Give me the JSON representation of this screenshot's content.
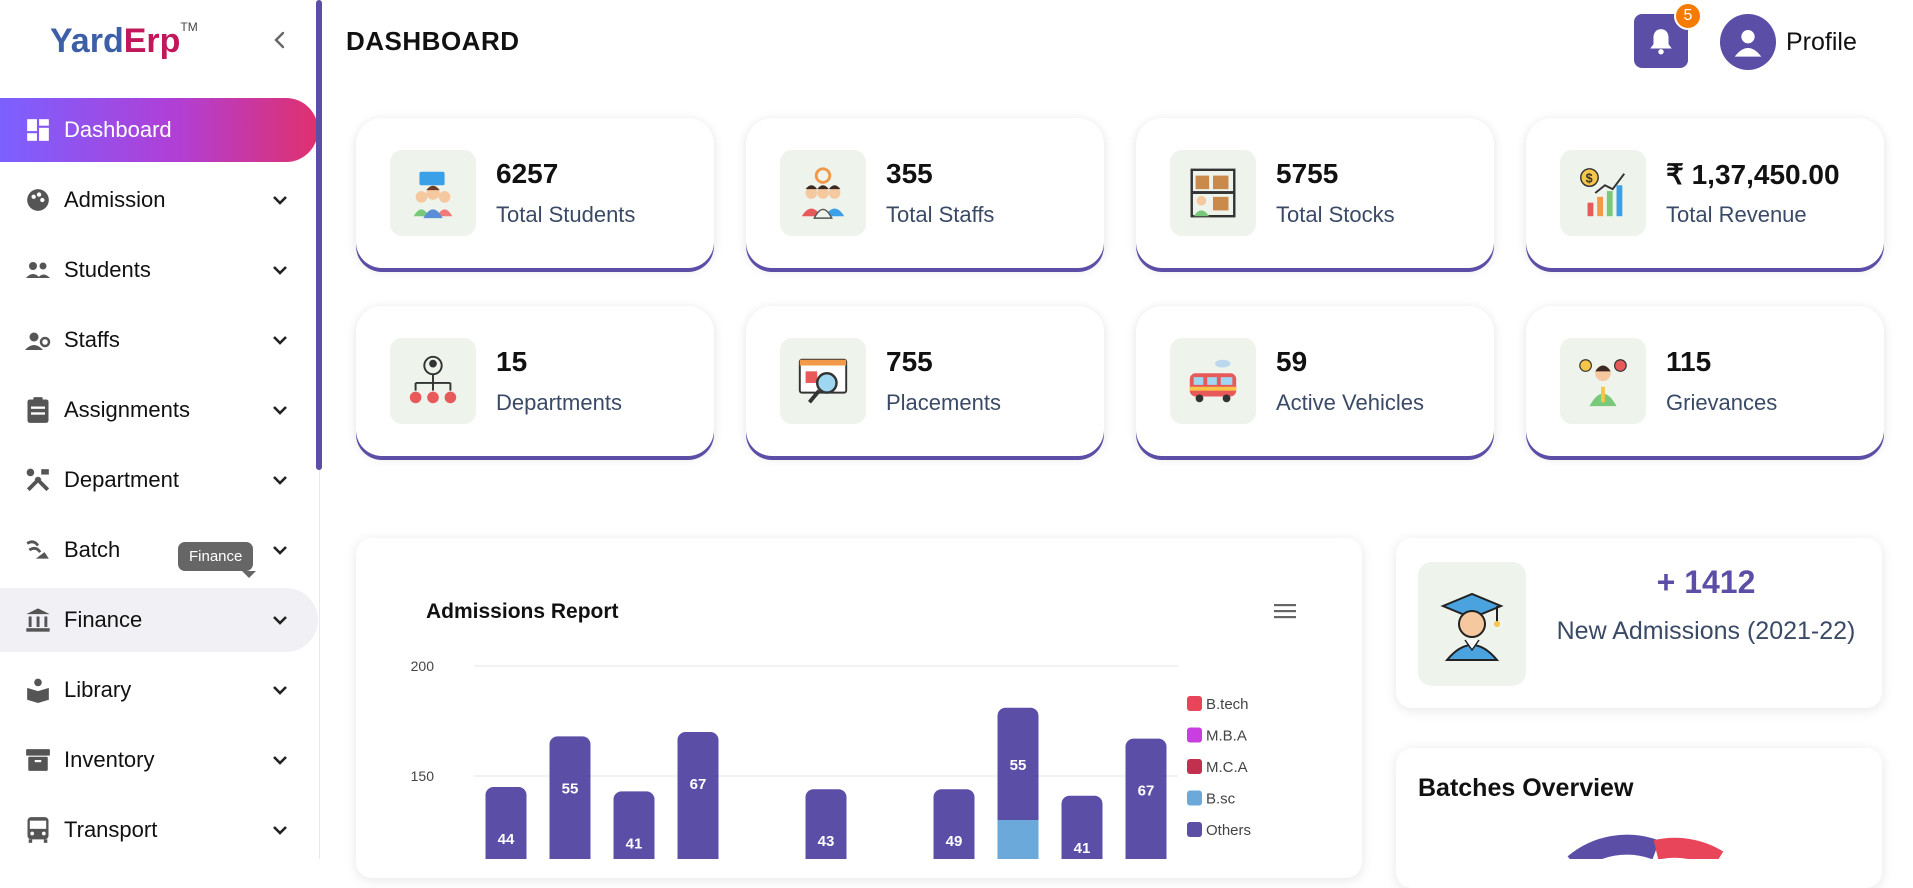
{
  "app": {
    "logo_part1": "Yard",
    "logo_part2": "Erp",
    "logo_tm": "TM"
  },
  "sidebar": {
    "items": [
      {
        "label": "Dashboard",
        "icon": "dashboard-icon"
      },
      {
        "label": "Admission",
        "icon": "palette-icon"
      },
      {
        "label": "Students",
        "icon": "people-icon"
      },
      {
        "label": "Staffs",
        "icon": "engineer-icon"
      },
      {
        "label": "Assignments",
        "icon": "clipboard-icon"
      },
      {
        "label": "Department",
        "icon": "tools-icon"
      },
      {
        "label": "Batch",
        "icon": "batch-icon"
      },
      {
        "label": "Finance",
        "icon": "bank-icon"
      },
      {
        "label": "Library",
        "icon": "book-reader-icon"
      },
      {
        "label": "Inventory",
        "icon": "archive-icon"
      },
      {
        "label": "Transport",
        "icon": "bus-icon"
      }
    ],
    "tooltip": "Finance"
  },
  "header": {
    "title": "DASHBOARD",
    "notification_count": "5",
    "profile_label": "Profile"
  },
  "stats": [
    {
      "value": "6257",
      "label": "Total Students",
      "icon": "students-icon"
    },
    {
      "value": "355",
      "label": "Total Staffs",
      "icon": "staffs-icon"
    },
    {
      "value": "5755",
      "label": "Total Stocks",
      "icon": "stocks-icon"
    },
    {
      "value": "₹ 1,37,450.00",
      "label": "Total Revenue",
      "icon": "revenue-icon"
    },
    {
      "value": "15",
      "label": "Departments",
      "icon": "departments-icon"
    },
    {
      "value": "755",
      "label": "Placements",
      "icon": "placements-icon"
    },
    {
      "value": "59",
      "label": "Active Vehicles",
      "icon": "vehicle-icon"
    },
    {
      "value": "115",
      "label": "Grievances",
      "icon": "grievances-icon"
    }
  ],
  "admissions": {
    "number": "+ 1412",
    "label": "New Admissions (2021-22)"
  },
  "batches": {
    "title": "Batches Overview"
  },
  "chart_data": {
    "type": "bar",
    "stacked": true,
    "title": "Admissions Report",
    "y_ticks": [
      "200",
      "150"
    ],
    "ylim": [
      0,
      200
    ],
    "legend_position": "right",
    "series": [
      {
        "name": "B.tech",
        "color": "#e8455a"
      },
      {
        "name": "M.B.A",
        "color": "#c93ee0"
      },
      {
        "name": "M.C.A",
        "color": "#c1304f"
      },
      {
        "name": "B.sc",
        "color": "#6aa9da"
      },
      {
        "name": "Others",
        "color": "#5b4ea6"
      }
    ],
    "bars": [
      {
        "top": 145,
        "label": "44"
      },
      {
        "top": 168,
        "label": "55"
      },
      {
        "top": 143,
        "label": "41"
      },
      {
        "top": 170,
        "label": "67"
      },
      {
        "top": null,
        "label": ""
      },
      {
        "top": 144,
        "label": "43"
      },
      {
        "top": null,
        "label": ""
      },
      {
        "top": 144,
        "label": "49"
      },
      {
        "top": 181,
        "label": "55",
        "bsc_top": 130
      },
      {
        "top": 141,
        "label": "41"
      },
      {
        "top": 167,
        "label": "67"
      }
    ]
  }
}
